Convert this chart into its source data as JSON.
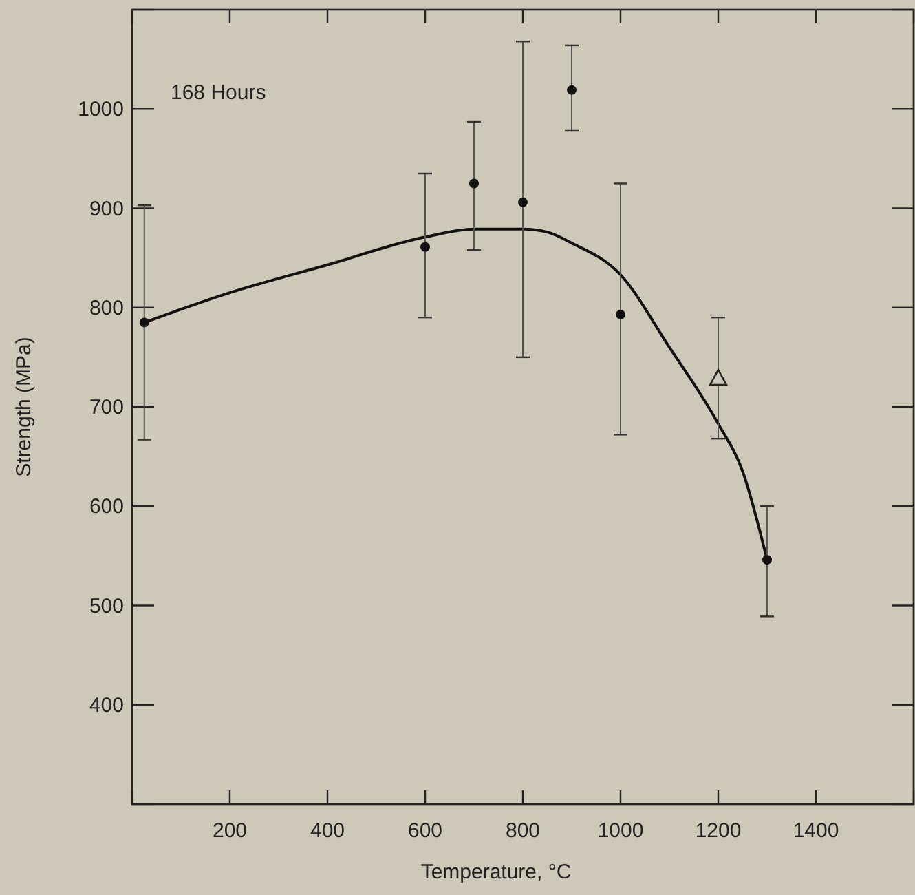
{
  "chart_data": {
    "type": "scatter",
    "xlabel": "Temperature, °C",
    "ylabel": "Strength (MPa)",
    "xlim": [
      0,
      1600
    ],
    "xticks": [
      {
        "value": 0,
        "label": null
      },
      200,
      400,
      600,
      800,
      1000,
      1200,
      1400,
      {
        "value": 1600,
        "label": null
      }
    ],
    "ylim": [
      300,
      1100
    ],
    "yticks": [
      {
        "value": 300,
        "label": null
      },
      400,
      500,
      600,
      700,
      800,
      900,
      1000,
      {
        "value": 1100,
        "label": null
      }
    ],
    "annotations": [
      "168 Hours"
    ],
    "series": [
      {
        "type": "line",
        "color": "#111111",
        "marker": "none",
        "line_style": "solid",
        "x": [
          25,
          200,
          400,
          600,
          700,
          800,
          850,
          900,
          1000,
          1100,
          1200,
          1250,
          1300
        ],
        "values": [
          785,
          815,
          843,
          871,
          879,
          879,
          876,
          865,
          833,
          760,
          683,
          635,
          546
        ]
      },
      {
        "color": "#111111",
        "marker": "circle",
        "x": [
          25,
          600,
          700,
          800,
          900,
          1000,
          1300
        ],
        "values": [
          785,
          861,
          925,
          906,
          1019,
          793,
          546
        ],
        "errors": [
          [
            667,
            903
          ],
          [
            790,
            935
          ],
          [
            858,
            987
          ],
          [
            750,
            1068
          ],
          [
            978,
            1064
          ],
          [
            672,
            925
          ],
          [
            489,
            600
          ]
        ]
      },
      {
        "color": "#222222",
        "marker": "triangle",
        "x": [
          1200
        ],
        "values": [
          729
        ],
        "errors": [
          [
            668,
            790
          ]
        ]
      }
    ]
  }
}
